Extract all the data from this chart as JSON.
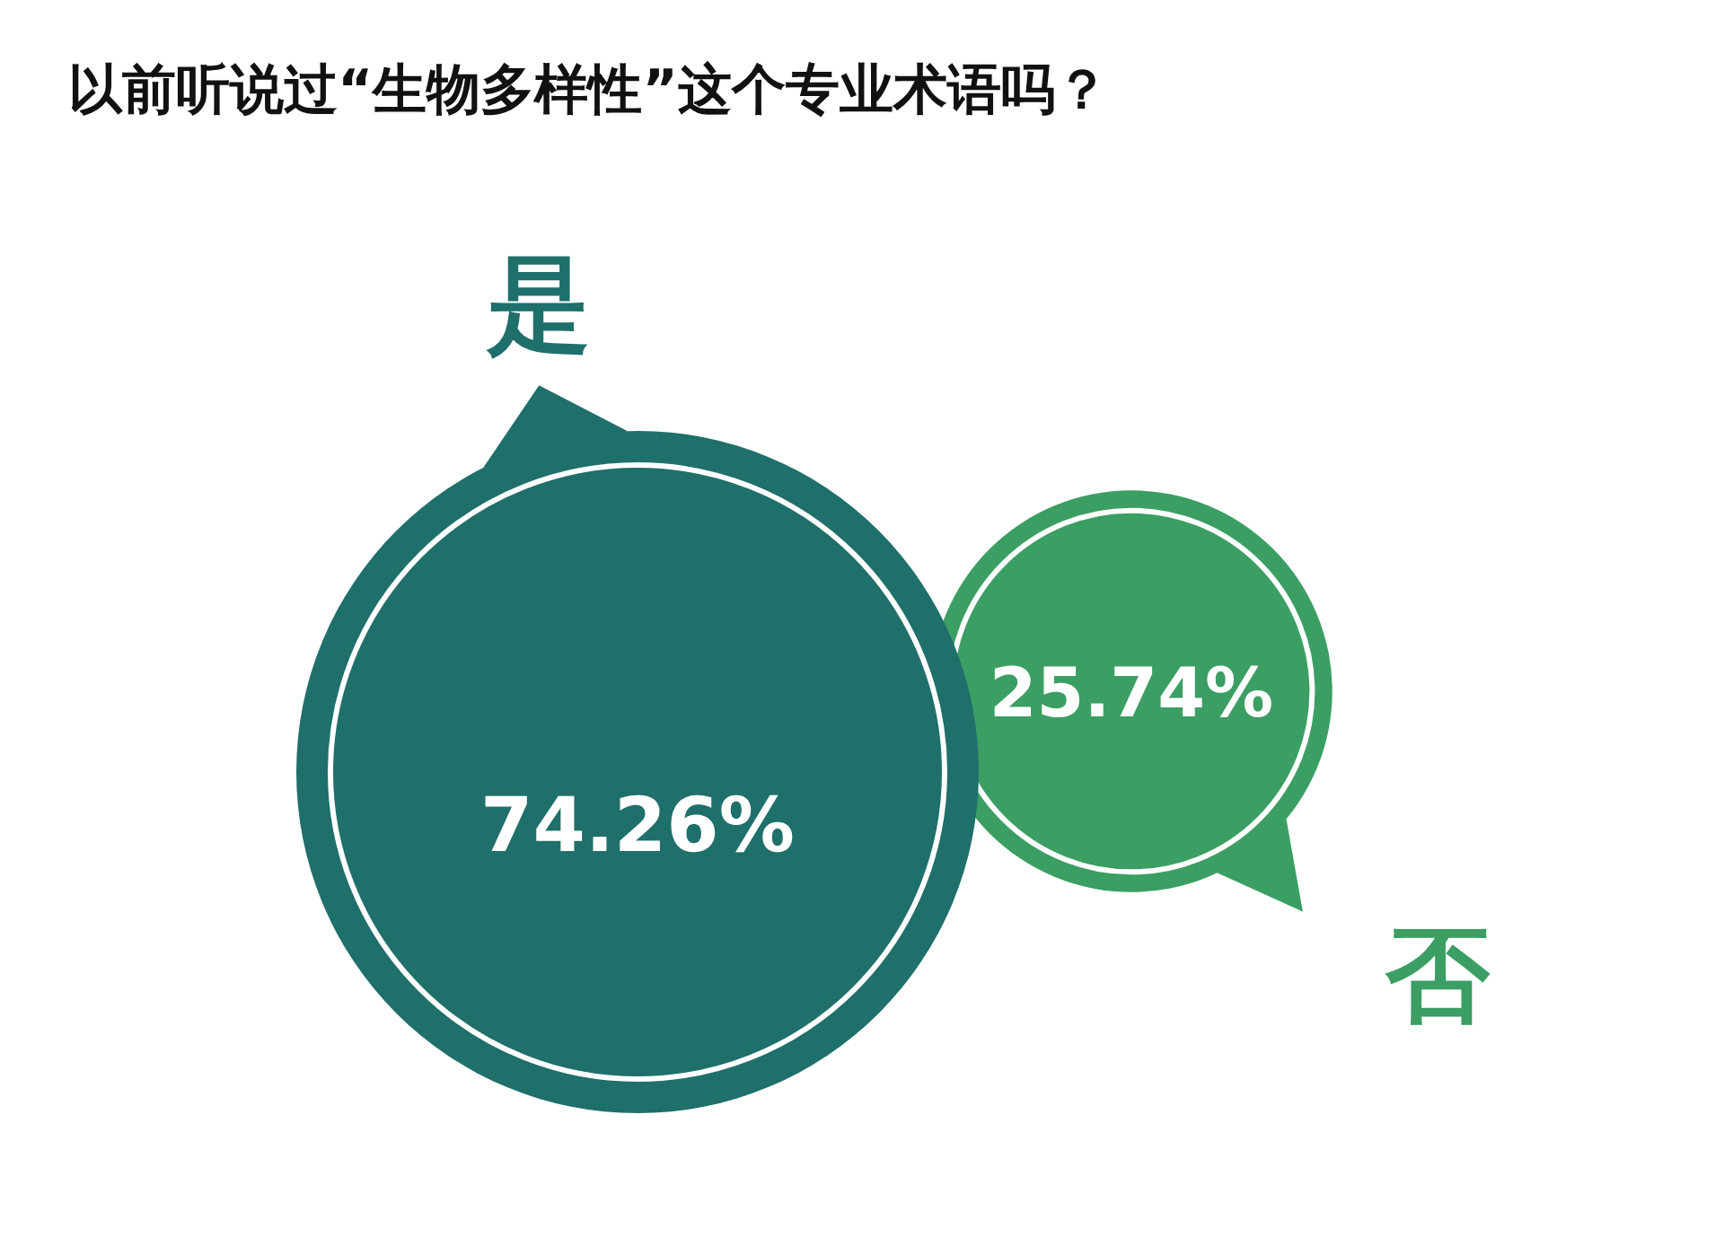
{
  "chart_data": {
    "type": "other",
    "title": "以前听说过“生物多样性”这个专业术语吗？",
    "categories": [
      "是",
      "否"
    ],
    "values": [
      74.26,
      25.74
    ],
    "value_labels": [
      "74.26%",
      "25.74%"
    ],
    "colors": [
      "#1f6f6b",
      "#3b9e63"
    ]
  }
}
